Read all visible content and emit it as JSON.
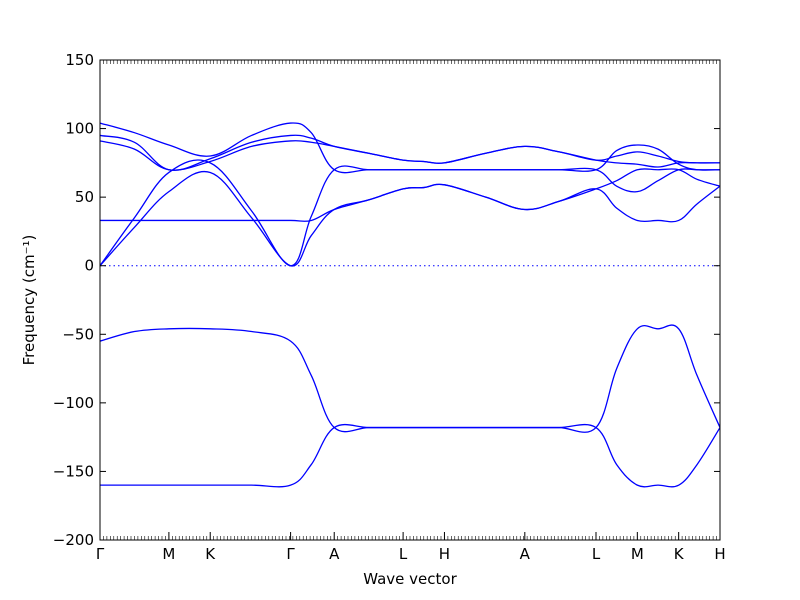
{
  "chart_data": {
    "type": "line",
    "xlabel": "Wave vector",
    "ylabel": "Frequency (cm⁻¹)",
    "ylim": [
      -200,
      150
    ],
    "xlim": [
      0,
      13.5
    ],
    "grid": false,
    "legend": "none",
    "line_color": "#0000ff",
    "zero_line": 0,
    "y_ticks": [
      150,
      100,
      50,
      0,
      -50,
      -100,
      -150,
      -200
    ],
    "x_ticks": [
      {
        "label": "Γ",
        "x": 0
      },
      {
        "label": "M",
        "x": 1.5
      },
      {
        "label": "K",
        "x": 2.4
      },
      {
        "label": "Γ",
        "x": 4.15
      },
      {
        "label": "A",
        "x": 5.1
      },
      {
        "label": "L",
        "x": 6.6
      },
      {
        "label": "H",
        "x": 7.5
      },
      {
        "label": "A",
        "x": 9.25
      },
      {
        "label": "L",
        "x": 10.8
      },
      {
        "label": "M",
        "x": 11.7
      },
      {
        "label": "K",
        "x": 12.6
      },
      {
        "label": "H",
        "x": 13.5
      }
    ],
    "series": [
      {
        "x": [
          0,
          0.75,
          1.5,
          2.4,
          3.3,
          4.15,
          4.6,
          5.1,
          5.85,
          6.6,
          7.05,
          7.5,
          8.4,
          9.25,
          10.0,
          10.8,
          11.25,
          11.7,
          12.15,
          12.6,
          13.0,
          13.5
        ],
        "values": [
          -160,
          -160,
          -160,
          -160,
          -160,
          -160,
          -145,
          -118,
          -118,
          -118,
          -118,
          -118,
          -118,
          -118,
          -118,
          -118,
          -145,
          -160,
          -160,
          -160,
          -145,
          -118
        ]
      },
      {
        "x": [
          0,
          0.75,
          1.5,
          2.4,
          3.3,
          4.15,
          4.6,
          5.1,
          5.85,
          6.6,
          7.05,
          7.5,
          8.4,
          9.25,
          10.0,
          10.8,
          11.25,
          11.7,
          12.15,
          12.6,
          13.0,
          13.5
        ],
        "values": [
          -55,
          -48,
          -46,
          -46,
          -48,
          -55,
          -80,
          -118,
          -118,
          -118,
          -118,
          -118,
          -118,
          -118,
          -118,
          -118,
          -75,
          -46,
          -46,
          -46,
          -80,
          -118
        ]
      },
      {
        "x": [
          0,
          0.75,
          1.5,
          2.4,
          3.3,
          4.15,
          4.6,
          5.1,
          5.85,
          6.6,
          7.05,
          7.5,
          8.4,
          9.25,
          10.0,
          10.8,
          11.25,
          11.7,
          12.15,
          12.6,
          13.0,
          13.5
        ],
        "values": [
          33,
          33,
          33,
          33,
          33,
          33,
          33,
          41,
          48,
          56,
          57,
          59,
          50,
          41,
          47,
          56,
          42,
          33,
          33,
          33,
          45,
          58
        ]
      },
      {
        "x": [
          0,
          0.75,
          1.5,
          2.4,
          3.3,
          4.15,
          4.6,
          5.1,
          5.85,
          6.6,
          7.05,
          7.5,
          8.4,
          9.25,
          10.0,
          10.8,
          11.25,
          11.7,
          12.15,
          12.6,
          13.0,
          13.5
        ],
        "values": [
          0,
          28,
          54,
          68,
          35,
          0,
          22,
          41,
          48,
          56,
          57,
          59,
          50,
          41,
          47,
          56,
          62,
          70,
          70,
          70,
          63,
          58
        ]
      },
      {
        "x": [
          0,
          0.75,
          1.5,
          2.4,
          3.3,
          4.15,
          4.6,
          5.1,
          5.85,
          6.6,
          7.05,
          7.5,
          8.4,
          9.25,
          10.0,
          10.8,
          11.25,
          11.7,
          12.15,
          12.6,
          13.0,
          13.5
        ],
        "values": [
          0,
          35,
          68,
          75,
          40,
          0,
          36,
          70,
          70,
          70,
          70,
          70,
          70,
          70,
          70,
          70,
          58,
          54,
          62,
          70,
          70,
          70
        ]
      },
      {
        "x": [
          0,
          0.75,
          1.5,
          2.4,
          3.3,
          4.15,
          4.6,
          5.1,
          5.85,
          6.6,
          7.05,
          7.5,
          8.4,
          9.25,
          10.0,
          10.8,
          11.25,
          11.7,
          12.15,
          12.6,
          13.0,
          13.5
        ],
        "values": [
          91,
          85,
          70,
          76,
          87,
          91,
          90,
          87,
          82,
          77,
          76,
          75,
          82,
          87,
          83,
          77,
          75,
          74,
          72,
          75,
          75,
          75
        ]
      },
      {
        "x": [
          0,
          0.75,
          1.5,
          2.4,
          3.3,
          4.15,
          4.6,
          5.1,
          5.85,
          6.6,
          7.05,
          7.5,
          8.4,
          9.25,
          10.0,
          10.8,
          11.25,
          11.7,
          12.15,
          12.6,
          13.0,
          13.5
        ],
        "values": [
          95,
          90,
          70,
          78,
          90,
          95,
          93,
          87,
          82,
          77,
          76,
          75,
          82,
          87,
          83,
          77,
          80,
          83,
          80,
          76,
          75,
          75
        ]
      },
      {
        "x": [
          0,
          0.75,
          1.5,
          2.4,
          3.3,
          4.15,
          4.6,
          5.1,
          5.85,
          6.6,
          7.05,
          7.5,
          8.4,
          9.25,
          10.0,
          10.8,
          11.25,
          11.7,
          12.15,
          12.6,
          13.0,
          13.5
        ],
        "values": [
          104,
          97,
          88,
          80,
          95,
          104,
          97,
          70,
          70,
          70,
          70,
          70,
          70,
          70,
          70,
          70,
          84,
          88,
          85,
          74,
          70,
          70
        ]
      }
    ]
  }
}
